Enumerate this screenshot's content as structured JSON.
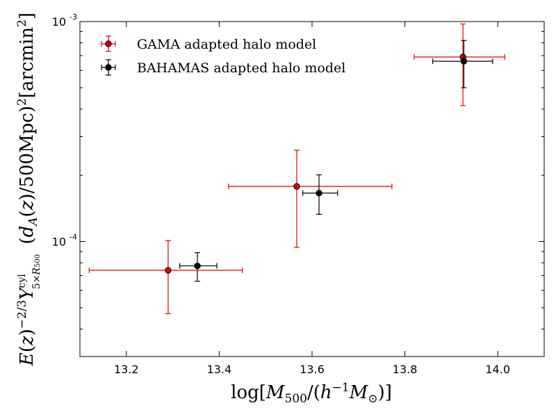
{
  "chart_data": {
    "type": "scatter",
    "title": "",
    "xlabel": "log[M_500/(h^-1 M_⊙)]",
    "ylabel": "E(z)^-2/3 Y^cyl_5×R500 (d_A(z)/500Mpc)^2 [arcmin^2]",
    "xlim": [
      13.1,
      14.1
    ],
    "ylim": [
      3e-05,
      0.001
    ],
    "yscale": "log",
    "x_ticks": [
      "13.2",
      "13.4",
      "13.6",
      "13.8",
      "14.0"
    ],
    "x_tick_values": [
      13.2,
      13.4,
      13.6,
      13.8,
      14.0
    ],
    "y_ticks": [
      {
        "value": 0.0001,
        "base": "10",
        "exp": "-4"
      },
      {
        "value": 0.001,
        "base": "10",
        "exp": "-3"
      }
    ],
    "legend_position": "top-left",
    "series": [
      {
        "name": "GAMA adapted halo model",
        "color": "#e00000",
        "points": [
          {
            "x": 13.29,
            "y": 7.4e-05,
            "xerr": [
              0.17,
              0.16
            ],
            "yerr": [
              2.7e-05,
              2.7e-05
            ]
          },
          {
            "x": 13.567,
            "y": 0.000178,
            "xerr": [
              0.147,
              0.205
            ],
            "yerr": [
              8.4e-05,
              8.2e-05
            ]
          },
          {
            "x": 13.925,
            "y": 0.00069,
            "xerr": [
              0.105,
              0.09
            ],
            "yerr": [
              0.000275,
              0.000285
            ]
          }
        ]
      },
      {
        "name": "BAHAMAS adapted halo model",
        "color": "#000000",
        "points": [
          {
            "x": 13.353,
            "y": 7.75e-05,
            "xerr": [
              0.038,
              0.042
            ],
            "yerr": [
              1.15e-05,
              1.15e-05
            ]
          },
          {
            "x": 13.615,
            "y": 0.000166,
            "xerr": [
              0.035,
              0.04
            ],
            "yerr": [
              3.3e-05,
              3.5e-05
            ]
          },
          {
            "x": 13.927,
            "y": 0.00066,
            "xerr": [
              0.067,
              0.062
            ],
            "yerr": [
              0.00016,
              0.00016
            ]
          }
        ]
      }
    ]
  }
}
